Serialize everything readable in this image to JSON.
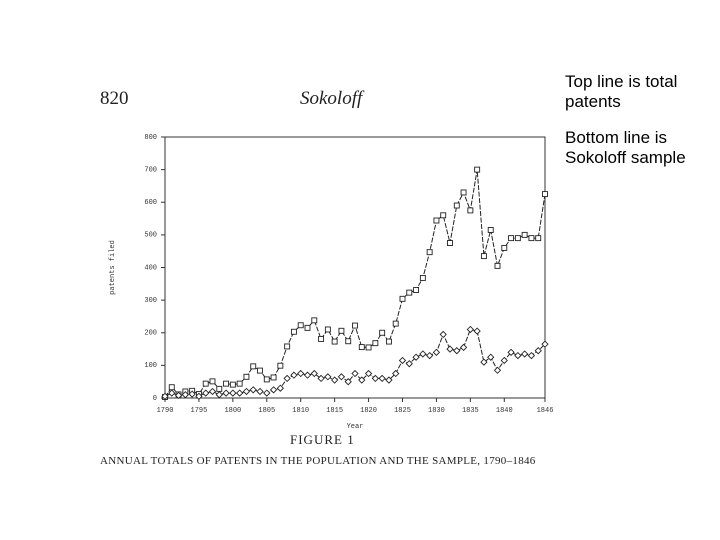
{
  "page_number": "820",
  "running_head": "Sokoloff",
  "notes": [
    "Top line is total patents",
    "Bottom line is Sokoloff sample"
  ],
  "chart_data": {
    "type": "line",
    "figure_label": "FIGURE 1",
    "caption": "ANNUAL TOTALS OF PATENTS IN THE POPULATION AND THE SAMPLE, 1790–1846",
    "x_label": "Year",
    "y_label": "patents filed",
    "x": [
      1790,
      1791,
      1792,
      1793,
      1794,
      1795,
      1796,
      1797,
      1798,
      1799,
      1800,
      1801,
      1802,
      1803,
      1804,
      1805,
      1806,
      1807,
      1808,
      1809,
      1810,
      1811,
      1812,
      1813,
      1814,
      1815,
      1816,
      1817,
      1818,
      1819,
      1820,
      1821,
      1822,
      1823,
      1824,
      1825,
      1826,
      1827,
      1828,
      1829,
      1830,
      1831,
      1832,
      1833,
      1834,
      1835,
      1836,
      1837,
      1838,
      1839,
      1840,
      1841,
      1842,
      1843,
      1844,
      1845,
      1846
    ],
    "series": [
      {
        "name": "Total patents",
        "color": "#222222",
        "marker": "square",
        "values": [
          3,
          33,
          11,
          20,
          22,
          12,
          44,
          51,
          28,
          44,
          41,
          44,
          65,
          97,
          84,
          57,
          63,
          99,
          158,
          203,
          223,
          215,
          238,
          181,
          210,
          173,
          206,
          174,
          222,
          156,
          155,
          168,
          200,
          173,
          228,
          304,
          323,
          331,
          368,
          447,
          544,
          560,
          475,
          590,
          630,
          575,
          700,
          435,
          515,
          405,
          460,
          490,
          490,
          500,
          490,
          490,
          625
        ]
      },
      {
        "name": "Sokoloff sample",
        "color": "#222222",
        "marker": "diamond",
        "values": [
          5,
          15,
          8,
          10,
          12,
          5,
          15,
          20,
          10,
          15,
          15,
          15,
          20,
          25,
          20,
          15,
          25,
          30,
          60,
          70,
          75,
          70,
          75,
          60,
          65,
          55,
          65,
          50,
          75,
          55,
          75,
          60,
          60,
          55,
          75,
          115,
          105,
          125,
          135,
          130,
          140,
          195,
          150,
          145,
          155,
          210,
          205,
          110,
          125,
          85,
          115,
          140,
          130,
          135,
          130,
          145,
          165
        ]
      }
    ],
    "xlim": [
      1790,
      1846
    ],
    "xticks": [
      1790,
      1795,
      1800,
      1805,
      1810,
      1815,
      1820,
      1825,
      1830,
      1835,
      1840,
      1846
    ],
    "ylim": [
      0,
      800
    ],
    "yticks": [
      0,
      100,
      200,
      300,
      400,
      500,
      600,
      700,
      800
    ]
  }
}
